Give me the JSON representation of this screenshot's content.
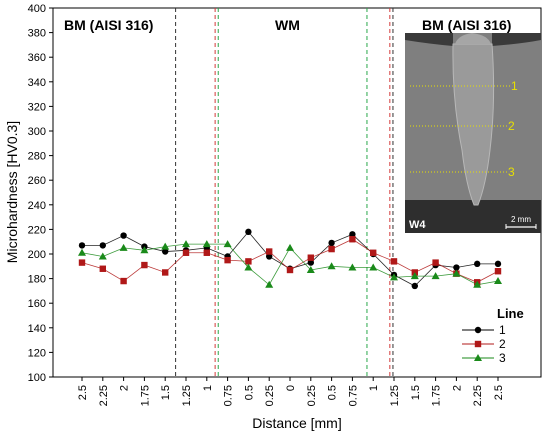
{
  "chart_data": {
    "type": "line",
    "xlabel": "Distance [mm]",
    "ylabel": "Microhardness [HV0.3]",
    "ylim": [
      100,
      400
    ],
    "yticks": [
      100,
      120,
      140,
      160,
      180,
      200,
      220,
      240,
      260,
      280,
      300,
      320,
      340,
      360,
      380,
      400
    ],
    "x_tick_labels": [
      "2.5",
      "2.25",
      "2",
      "1.75",
      "1.5",
      "1.25",
      "1",
      "0.75",
      "0.5",
      "0.25",
      "0",
      "0.25",
      "0.5",
      "0.75",
      "1",
      "1.25",
      "1.5",
      "1.75",
      "2",
      "2.25",
      "2.5"
    ],
    "grid": false,
    "regions": [
      {
        "label": "BM (AISI 316)"
      },
      {
        "label": "WM"
      },
      {
        "label": "BM (AISI 316)"
      }
    ],
    "boundaries": [
      {
        "x_index": 4.5,
        "color": "#333333"
      },
      {
        "x_index": 6.4,
        "color": "#d43a3a"
      },
      {
        "x_index": 6.55,
        "color": "#2aa84a"
      },
      {
        "x_index": 13.7,
        "color": "#2aa84a"
      },
      {
        "x_index": 14.8,
        "color": "#d43a3a"
      },
      {
        "x_index": 14.95,
        "color": "#333333"
      }
    ],
    "legend": {
      "title": "Line",
      "position": "bottom-right"
    },
    "series": [
      {
        "name": "1",
        "color": "#000000",
        "marker": "circle",
        "values": [
          207,
          207,
          215,
          206,
          202,
          203,
          205,
          198,
          218,
          198,
          188,
          193,
          209,
          216,
          200,
          183,
          174,
          191,
          189,
          192,
          192
        ]
      },
      {
        "name": "2",
        "color": "#b01818",
        "marker": "square",
        "values": [
          193,
          188,
          178,
          191,
          185,
          201,
          201,
          195,
          194,
          202,
          187,
          197,
          204,
          212,
          201,
          194,
          185,
          193,
          184,
          177,
          186
        ]
      },
      {
        "name": "3",
        "color": "#1a8a1a",
        "marker": "triangle",
        "values": [
          201,
          198,
          205,
          203,
          206,
          208,
          208,
          208,
          189,
          175,
          205,
          187,
          190,
          189,
          189,
          181,
          182,
          182,
          184,
          175,
          178
        ]
      }
    ],
    "inset": {
      "label": "W4",
      "scale_bar": "2 mm",
      "line_labels": [
        "1",
        "2",
        "3"
      ]
    }
  }
}
